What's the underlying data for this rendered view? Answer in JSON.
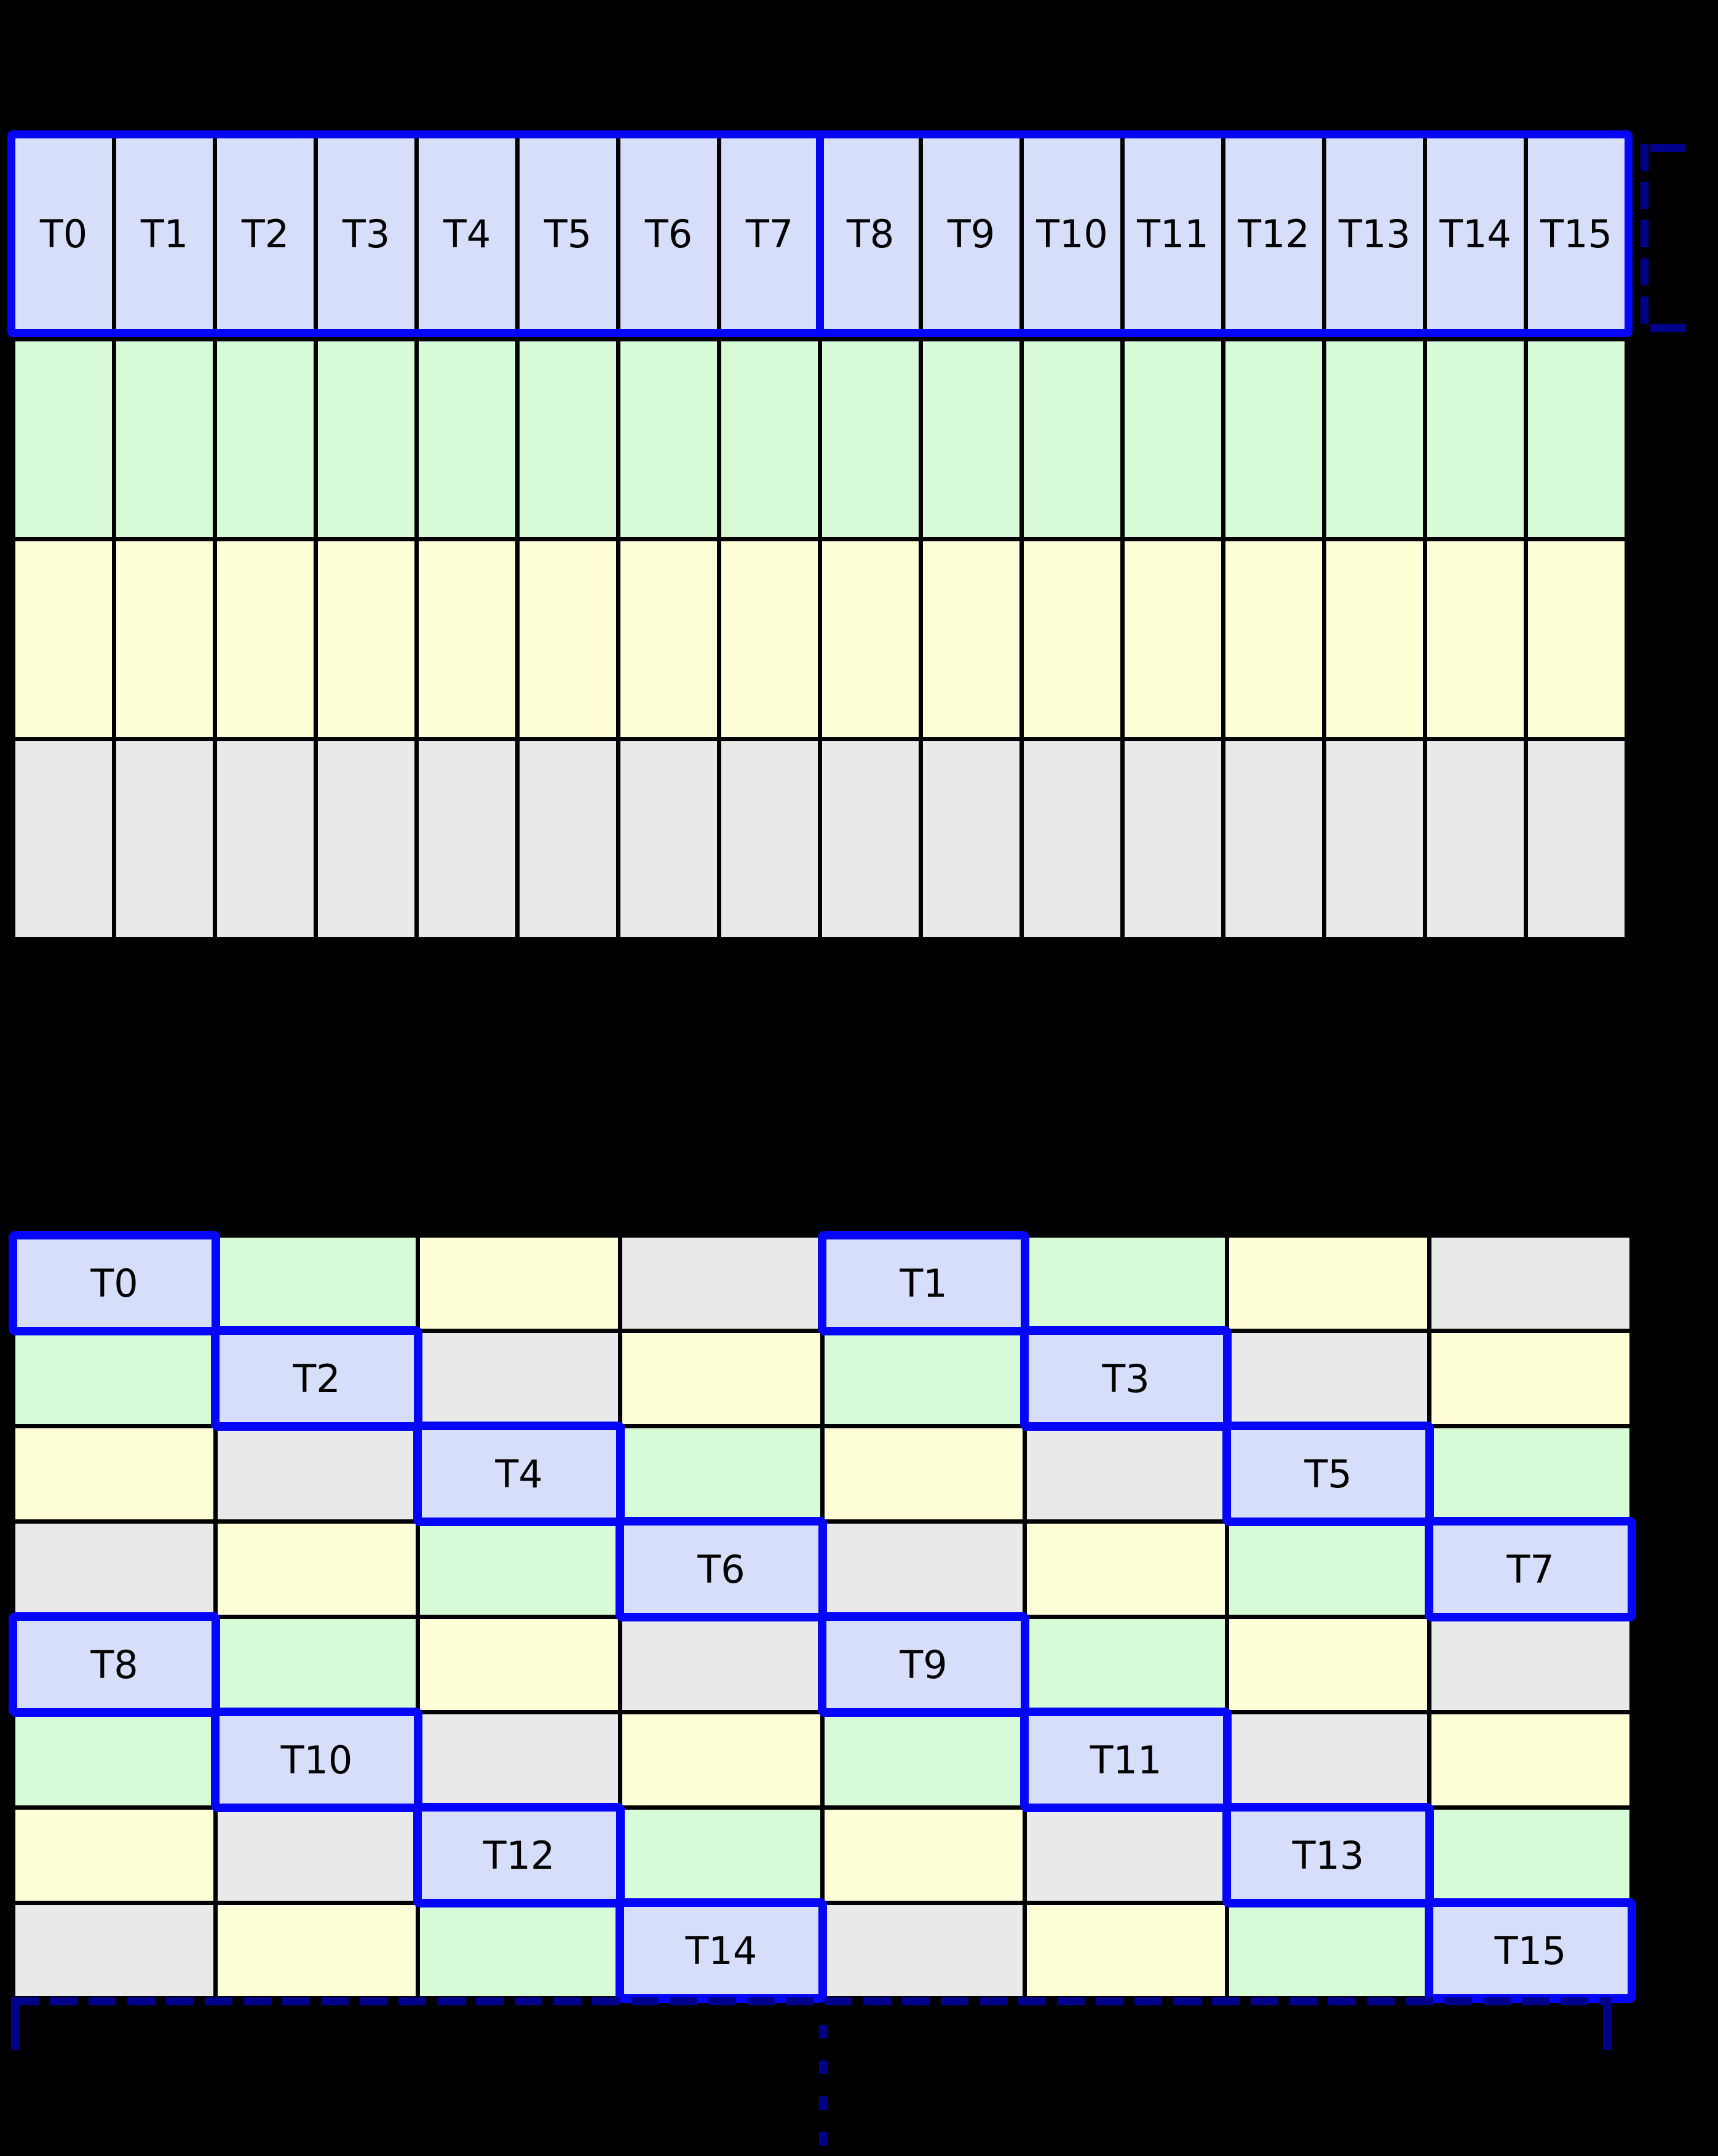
{
  "diagram": {
    "palette": {
      "lavender": "#D7DEFA",
      "green": "#D6FBD6",
      "yellow": "#FFFFD7",
      "gray": "#E9E9EA",
      "highlight_border_blue": "#0505FA",
      "bracket_navy": "#00008B",
      "grid_line_black": "#000000",
      "label_black": "#000000",
      "background_black": "#000000"
    },
    "top_table": {
      "header_labels": [
        "T0",
        "T1",
        "T2",
        "T3",
        "T4",
        "T5",
        "T6",
        "T7",
        "T8",
        "T9",
        "T10",
        "T11",
        "T12",
        "T13",
        "T14",
        "T15"
      ],
      "header_cell_color": "lavender",
      "header_groups": [
        {
          "first_label": "T0",
          "last_label": "T7"
        },
        {
          "first_label": "T8",
          "last_label": "T15"
        }
      ],
      "body_row_colors": [
        "green",
        "yellow",
        "gray"
      ],
      "columns": 16
    },
    "bottom_table": {
      "rows": 8,
      "columns": 8,
      "row_colors": [
        [
          "lavender",
          "green",
          "yellow",
          "gray",
          "lavender",
          "green",
          "yellow",
          "gray"
        ],
        [
          "green",
          "lavender",
          "gray",
          "yellow",
          "green",
          "lavender",
          "gray",
          "yellow"
        ],
        [
          "yellow",
          "gray",
          "lavender",
          "green",
          "yellow",
          "gray",
          "lavender",
          "green"
        ],
        [
          "gray",
          "yellow",
          "green",
          "lavender",
          "gray",
          "yellow",
          "green",
          "lavender"
        ],
        [
          "lavender",
          "green",
          "yellow",
          "gray",
          "lavender",
          "green",
          "yellow",
          "gray"
        ],
        [
          "green",
          "lavender",
          "gray",
          "yellow",
          "green",
          "lavender",
          "gray",
          "yellow"
        ],
        [
          "yellow",
          "gray",
          "lavender",
          "green",
          "yellow",
          "gray",
          "lavender",
          "green"
        ],
        [
          "gray",
          "yellow",
          "green",
          "lavender",
          "gray",
          "yellow",
          "green",
          "lavender"
        ]
      ],
      "highlighted_cells": [
        {
          "label": "T0",
          "row": 0,
          "col": 0
        },
        {
          "label": "T1",
          "row": 0,
          "col": 4
        },
        {
          "label": "T2",
          "row": 1,
          "col": 1
        },
        {
          "label": "T3",
          "row": 1,
          "col": 5
        },
        {
          "label": "T4",
          "row": 2,
          "col": 2
        },
        {
          "label": "T5",
          "row": 2,
          "col": 6
        },
        {
          "label": "T6",
          "row": 3,
          "col": 3
        },
        {
          "label": "T7",
          "row": 3,
          "col": 7
        },
        {
          "label": "T8",
          "row": 4,
          "col": 0
        },
        {
          "label": "T9",
          "row": 4,
          "col": 4
        },
        {
          "label": "T10",
          "row": 5,
          "col": 1
        },
        {
          "label": "T11",
          "row": 5,
          "col": 5
        },
        {
          "label": "T12",
          "row": 6,
          "col": 2
        },
        {
          "label": "T13",
          "row": 6,
          "col": 6
        },
        {
          "label": "T14",
          "row": 7,
          "col": 3
        },
        {
          "label": "T15",
          "row": 7,
          "col": 7
        }
      ]
    },
    "annotations": {
      "right_bracket_style": "dashed",
      "bottom_bracket_style": "dashed",
      "ellipsis_style": "dotted-vertical"
    }
  }
}
